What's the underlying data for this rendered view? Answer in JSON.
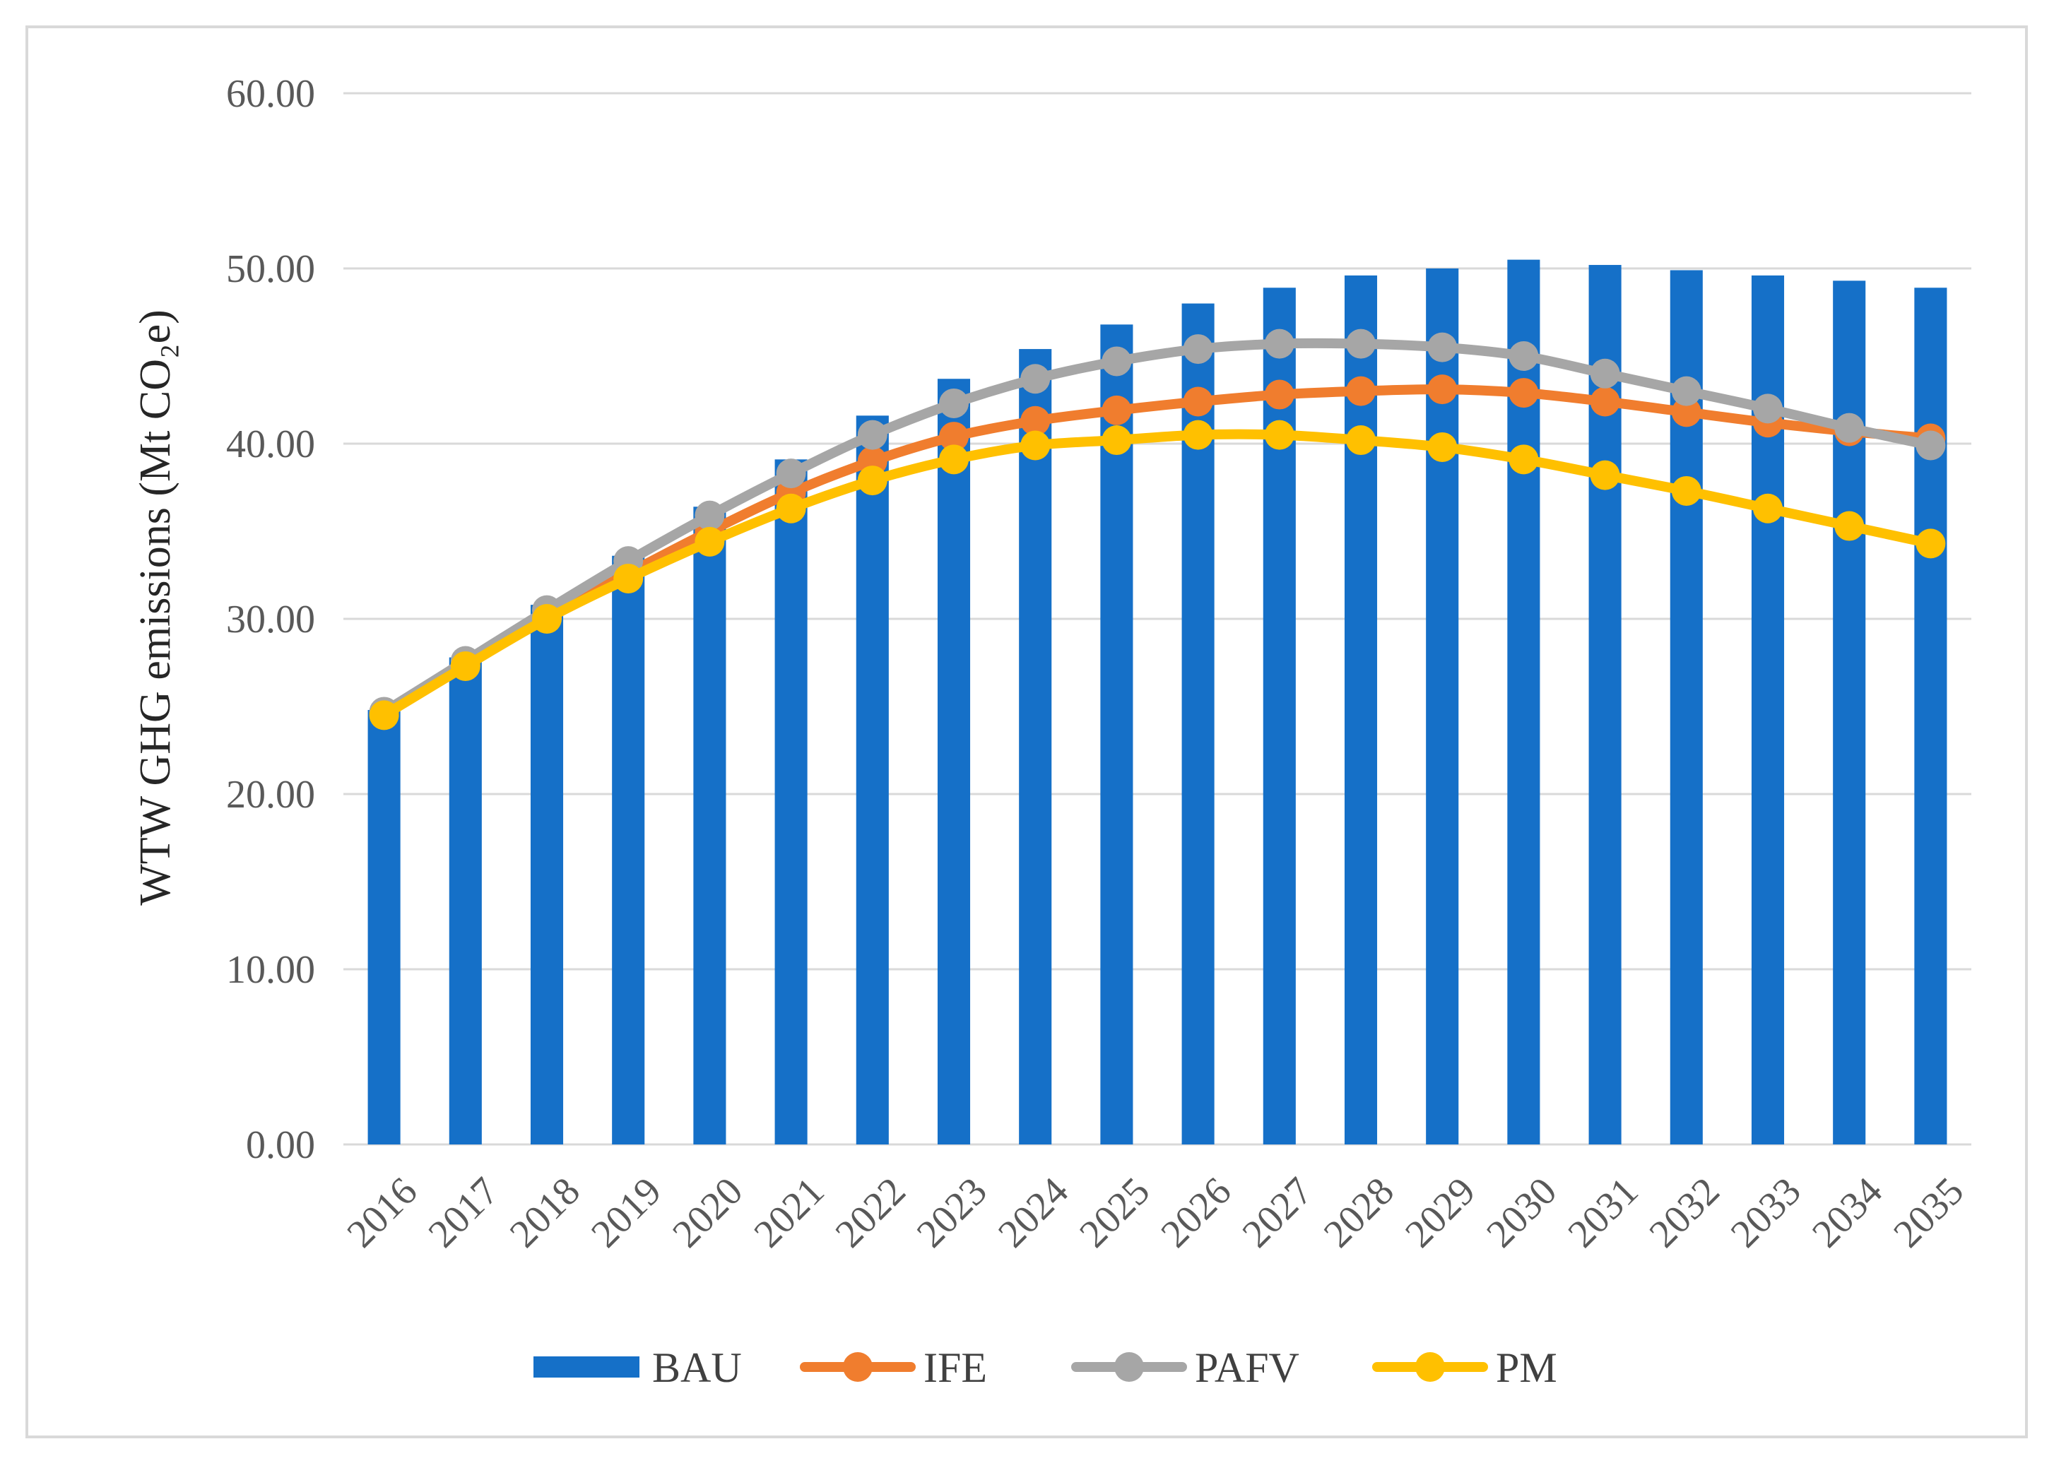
{
  "chart_data": {
    "type": "bar",
    "title": "",
    "xlabel": "",
    "ylabel": "WTW GHG emissions (Mt CO₂e)",
    "ylim": [
      0,
      60
    ],
    "yticks": [
      "0.00",
      "10.00",
      "20.00",
      "30.00",
      "40.00",
      "50.00",
      "60.00"
    ],
    "grid": true,
    "legend_position": "bottom",
    "categories": [
      "2016",
      "2017",
      "2018",
      "2019",
      "2020",
      "2021",
      "2022",
      "2023",
      "2024",
      "2025",
      "2026",
      "2027",
      "2028",
      "2029",
      "2030",
      "2031",
      "2032",
      "2033",
      "2034",
      "2035"
    ],
    "series": [
      {
        "name": "BAU",
        "kind": "bar",
        "color": "#1570c8",
        "values": [
          24.8,
          27.8,
          30.8,
          33.6,
          36.4,
          39.1,
          41.6,
          43.7,
          45.4,
          46.8,
          48.0,
          48.9,
          49.6,
          50.0,
          50.5,
          50.2,
          49.9,
          49.6,
          49.3,
          48.9
        ]
      },
      {
        "name": "IFE",
        "kind": "line",
        "color": "#f07d2e",
        "values": [
          24.6,
          27.4,
          30.1,
          32.6,
          35.0,
          37.2,
          39.0,
          40.4,
          41.3,
          41.9,
          42.4,
          42.8,
          43.0,
          43.1,
          42.9,
          42.4,
          41.8,
          41.2,
          40.7,
          40.3
        ]
      },
      {
        "name": "PAFV",
        "kind": "line",
        "color": "#a6a6a6",
        "values": [
          24.7,
          27.6,
          30.5,
          33.3,
          35.9,
          38.3,
          40.5,
          42.3,
          43.7,
          44.7,
          45.4,
          45.7,
          45.7,
          45.5,
          45.0,
          44.0,
          43.0,
          42.0,
          40.9,
          39.9
        ]
      },
      {
        "name": "PM",
        "kind": "line",
        "color": "#ffc000",
        "values": [
          24.5,
          27.3,
          30.0,
          32.3,
          34.4,
          36.3,
          37.9,
          39.1,
          39.9,
          40.2,
          40.5,
          40.5,
          40.2,
          39.8,
          39.1,
          38.2,
          37.3,
          36.3,
          35.3,
          34.3
        ]
      }
    ]
  }
}
